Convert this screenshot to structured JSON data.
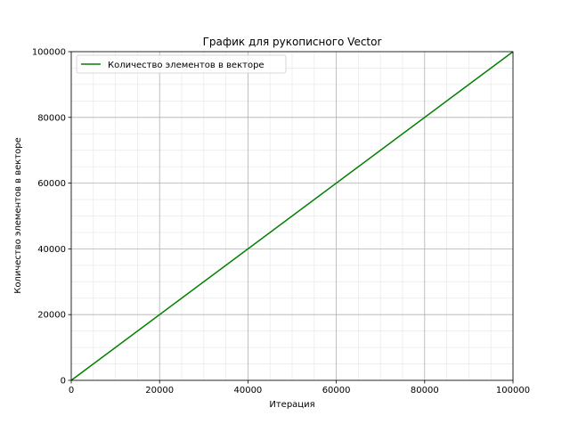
{
  "chart_data": {
    "type": "line",
    "title": "График для рукописного Vector",
    "xlabel": "Итерация",
    "ylabel": "Количество элементов в векторе",
    "xlim": [
      0,
      100000
    ],
    "ylim": [
      0,
      100000
    ],
    "x_ticks": [
      0,
      20000,
      40000,
      60000,
      80000,
      100000
    ],
    "y_ticks": [
      0,
      20000,
      40000,
      60000,
      80000,
      100000
    ],
    "x_tick_labels": [
      "0",
      "20000",
      "40000",
      "60000",
      "80000",
      "100000"
    ],
    "y_tick_labels": [
      "0",
      "20000",
      "40000",
      "60000",
      "80000",
      "100000"
    ],
    "grid": true,
    "minor_grid": true,
    "legend_position": "upper-left",
    "series": [
      {
        "name": "Количество элементов в векторе",
        "color": "#008000",
        "x": [
          0,
          100000
        ],
        "y": [
          0,
          100000
        ]
      }
    ]
  }
}
